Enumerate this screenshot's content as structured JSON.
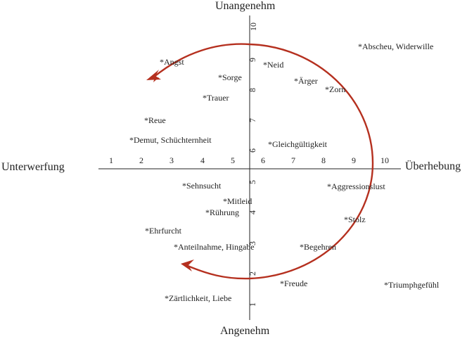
{
  "poles": {
    "top": "Unangenehm",
    "bottom": "Angenehm",
    "left": "Unterwerfung",
    "right": "Überhebung"
  },
  "x_ticks": [
    "1",
    "2",
    "3",
    "4",
    "5",
    "6",
    "7",
    "8",
    "9",
    "10"
  ],
  "y_ticks": [
    "1",
    "2",
    "3",
    "4",
    "5",
    "6",
    "7",
    "8",
    "9",
    "10"
  ],
  "emotions": [
    "*Abscheu, Widerwille",
    "*Angst",
    "*Neid",
    "*Sorge",
    "*Ärger",
    "*Zorn",
    "*Trauer",
    "*Reue",
    "*Demut, Schüchternheit",
    "*Gleichgültigkeit",
    "*Sehnsucht",
    "*Aggressionslust",
    "*Mitleid",
    "*Rührung",
    "*Stolz",
    "*Ehrfurcht",
    "*Anteilnahme, Hingabe",
    "*Begehren",
    "*Freude",
    "*Triumphgefühl",
    "*Zärtlichkeit, Liebe"
  ],
  "colors": {
    "arrow": "#b5301f",
    "axis": "#222222"
  }
}
